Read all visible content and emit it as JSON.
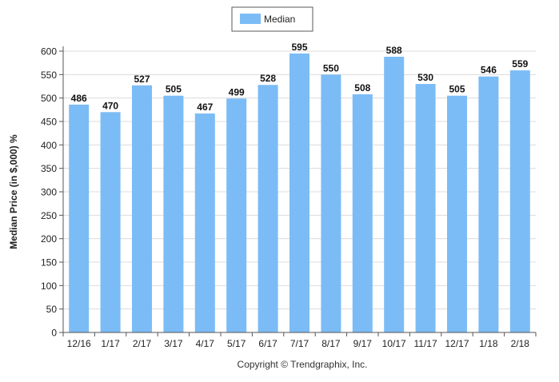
{
  "chart_data": {
    "type": "bar",
    "categories": [
      "12/16",
      "1/17",
      "2/17",
      "3/17",
      "4/17",
      "5/17",
      "6/17",
      "7/17",
      "8/17",
      "9/17",
      "10/17",
      "11/17",
      "12/17",
      "1/18",
      "2/18"
    ],
    "series": [
      {
        "name": "Median",
        "values": [
          486,
          470,
          527,
          505,
          467,
          499,
          528,
          595,
          550,
          508,
          588,
          530,
          505,
          546,
          559
        ]
      }
    ],
    "ylabel": "Median Price (in $,000) %",
    "ylim": [
      0,
      600
    ],
    "yticks": [
      0,
      50,
      100,
      150,
      200,
      250,
      300,
      350,
      400,
      450,
      500,
      550,
      600
    ],
    "grid": true,
    "legend_position": "top-center",
    "bar_color": "#7cbcf6",
    "grid_color": "#dcdcdc"
  },
  "footer": {
    "copyright": "Copyright © Trendgraphix, Inc."
  }
}
